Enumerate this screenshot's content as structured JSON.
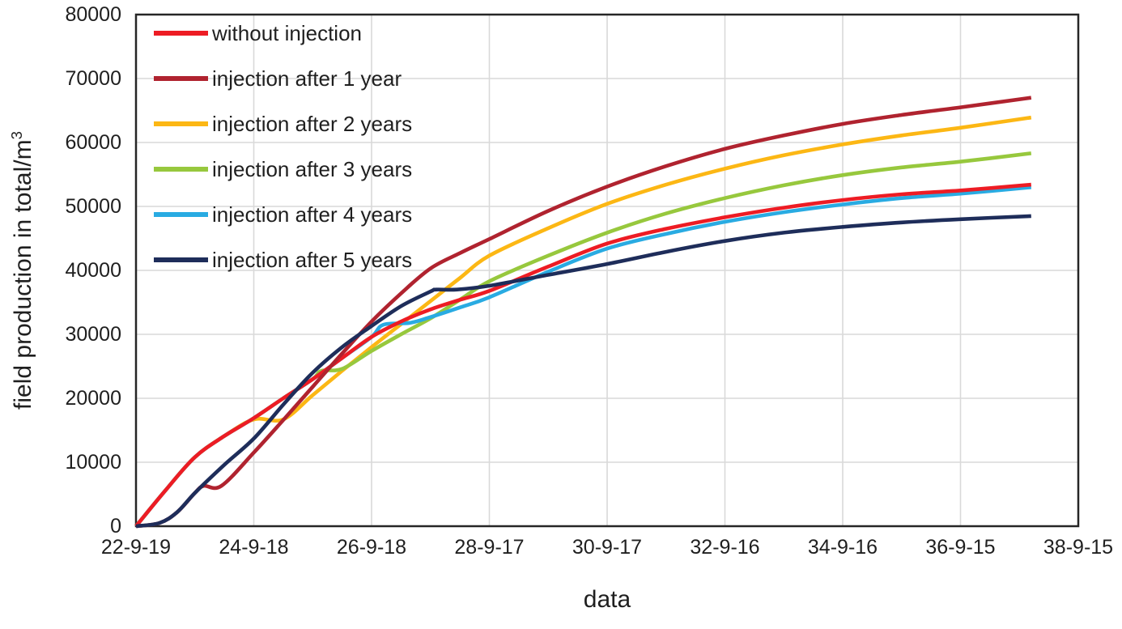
{
  "chart_data": {
    "type": "line",
    "title": "",
    "x_axis": {
      "title": "data",
      "tick_labels": [
        "22-9-19",
        "24-9-18",
        "26-9-18",
        "28-9-17",
        "30-9-17",
        "32-9-16",
        "34-9-16",
        "36-9-15",
        "38-9-15"
      ],
      "range_years": [
        0,
        16
      ],
      "years_per_tick": 2
    },
    "y_axis": {
      "title_base": "field production in total/m",
      "title_sup": "3",
      "min": 0,
      "max": 80000,
      "step": 10000,
      "tick_labels": [
        "0",
        "10000",
        "20000",
        "30000",
        "40000",
        "50000",
        "60000",
        "70000",
        "80000"
      ]
    },
    "grid": true,
    "legend_position": "top-left-inside",
    "series": [
      {
        "name": "without injection",
        "color": "#ED1C24",
        "points": [
          [
            0,
            0
          ],
          [
            0.5,
            5600
          ],
          [
            1,
            10800
          ],
          [
            1.5,
            14100
          ],
          [
            2,
            16900
          ],
          [
            2.5,
            20000
          ],
          [
            3,
            23000
          ],
          [
            3.5,
            26300
          ],
          [
            4,
            29600
          ],
          [
            4.5,
            32000
          ],
          [
            5,
            33900
          ],
          [
            5.5,
            35400
          ],
          [
            6,
            36800
          ],
          [
            7,
            40600
          ],
          [
            8,
            44200
          ],
          [
            9,
            46500
          ],
          [
            10,
            48300
          ],
          [
            11,
            49800
          ],
          [
            12,
            51000
          ],
          [
            13,
            51900
          ],
          [
            14,
            52500
          ],
          [
            15.2,
            53400
          ]
        ]
      },
      {
        "name": "injection after 1 year",
        "color": "#B0232F",
        "points": [
          [
            0,
            0
          ],
          [
            0.4,
            500
          ],
          [
            0.7,
            2200
          ],
          [
            1,
            5200
          ],
          [
            1.15,
            6300
          ],
          [
            1.45,
            6300
          ],
          [
            2,
            11500
          ],
          [
            2.5,
            16600
          ],
          [
            3,
            21800
          ],
          [
            3.5,
            27000
          ],
          [
            4,
            32000
          ],
          [
            4.5,
            36400
          ],
          [
            5,
            40300
          ],
          [
            5.5,
            42700
          ],
          [
            6,
            44900
          ],
          [
            7,
            49300
          ],
          [
            8,
            53100
          ],
          [
            9,
            56300
          ],
          [
            10,
            59000
          ],
          [
            11,
            61100
          ],
          [
            12,
            62900
          ],
          [
            13,
            64300
          ],
          [
            14,
            65500
          ],
          [
            15.2,
            67000
          ]
        ]
      },
      {
        "name": "injection after 2 years",
        "color": "#FCB714",
        "points": [
          [
            0,
            0
          ],
          [
            0.5,
            5600
          ],
          [
            1,
            10800
          ],
          [
            1.5,
            14100
          ],
          [
            2,
            16700
          ],
          [
            2.5,
            16700
          ],
          [
            3,
            20500
          ],
          [
            3.5,
            24300
          ],
          [
            4,
            28000
          ],
          [
            4.5,
            31600
          ],
          [
            5,
            35200
          ],
          [
            5.5,
            38800
          ],
          [
            6,
            42300
          ],
          [
            7,
            46600
          ],
          [
            8,
            50400
          ],
          [
            9,
            53400
          ],
          [
            10,
            55900
          ],
          [
            11,
            58000
          ],
          [
            12,
            59700
          ],
          [
            13,
            61100
          ],
          [
            14,
            62300
          ],
          [
            15.2,
            63900
          ]
        ]
      },
      {
        "name": "injection after 3 years",
        "color": "#97C83D",
        "points": [
          [
            0,
            0
          ],
          [
            0.5,
            5600
          ],
          [
            1,
            10800
          ],
          [
            1.5,
            14100
          ],
          [
            2,
            16900
          ],
          [
            2.5,
            20000
          ],
          [
            3,
            23000
          ],
          [
            3.15,
            24300
          ],
          [
            3.5,
            24600
          ],
          [
            4,
            27400
          ],
          [
            4.5,
            30000
          ],
          [
            5,
            32500
          ],
          [
            5.5,
            35400
          ],
          [
            6,
            38300
          ],
          [
            7,
            42300
          ],
          [
            8,
            45900
          ],
          [
            9,
            48900
          ],
          [
            10,
            51300
          ],
          [
            11,
            53300
          ],
          [
            12,
            54900
          ],
          [
            13,
            56100
          ],
          [
            14,
            57000
          ],
          [
            15.2,
            58300
          ]
        ]
      },
      {
        "name": "injection after 4 years",
        "color": "#29ABE2",
        "points": [
          [
            0,
            0
          ],
          [
            0.5,
            5600
          ],
          [
            1,
            10800
          ],
          [
            1.5,
            14100
          ],
          [
            2,
            16900
          ],
          [
            2.5,
            20000
          ],
          [
            3,
            23000
          ],
          [
            3.5,
            26300
          ],
          [
            4,
            29600
          ],
          [
            4.2,
            31500
          ],
          [
            4.65,
            31800
          ],
          [
            5,
            32700
          ],
          [
            5.5,
            34200
          ],
          [
            6,
            35800
          ],
          [
            7,
            39800
          ],
          [
            8,
            43400
          ],
          [
            9,
            45700
          ],
          [
            10,
            47600
          ],
          [
            11,
            49100
          ],
          [
            12,
            50300
          ],
          [
            13,
            51300
          ],
          [
            14,
            52000
          ],
          [
            15.2,
            53000
          ]
        ]
      },
      {
        "name": "injection after 5 years",
        "color": "#1E2D5A",
        "points": [
          [
            0,
            0
          ],
          [
            0.4,
            500
          ],
          [
            0.7,
            2200
          ],
          [
            1,
            5200
          ],
          [
            1.5,
            9600
          ],
          [
            2,
            13700
          ],
          [
            2.5,
            19000
          ],
          [
            3,
            24000
          ],
          [
            3.5,
            28000
          ],
          [
            4,
            31300
          ],
          [
            4.5,
            34400
          ],
          [
            5,
            36700
          ],
          [
            5.1,
            37000
          ],
          [
            5.45,
            37000
          ],
          [
            6,
            37600
          ],
          [
            7,
            39300
          ],
          [
            8,
            41000
          ],
          [
            9,
            42900
          ],
          [
            10,
            44600
          ],
          [
            11,
            45900
          ],
          [
            12,
            46800
          ],
          [
            13,
            47500
          ],
          [
            14,
            48000
          ],
          [
            15.2,
            48500
          ]
        ]
      }
    ]
  }
}
